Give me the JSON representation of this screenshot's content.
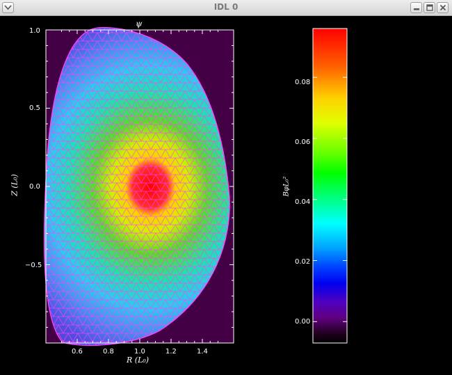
{
  "window": {
    "title": "IDL 0",
    "menu_icon": "chevron-down-icon",
    "controls": [
      "minimize-icon",
      "maximize-icon",
      "close-icon"
    ]
  },
  "chart_data": {
    "type": "heatmap",
    "title": "ψ",
    "xlabel": "R (L₀)",
    "ylabel": "Z (L₀)",
    "xlim": [
      0.4,
      1.6
    ],
    "ylim": [
      -1.0,
      1.0
    ],
    "x_ticks": [
      "0.6",
      "0.8",
      "1.0",
      "1.2",
      "1.4"
    ],
    "y_ticks": [
      "1.0",
      "0.5",
      "0.0",
      "−0.5"
    ],
    "colorbar": {
      "label": "BφL₀²",
      "range": [
        -0.007,
        0.096
      ],
      "ticks": [
        "0.08",
        "0.06",
        "0.04",
        "0.02",
        "0.00"
      ],
      "colormap": "rainbow"
    },
    "mesh": "triangular finite-element mesh (magenta)",
    "peak": {
      "R": 1.05,
      "Z": 0.0
    },
    "colors": {
      "background": "#000000",
      "plot_fill": "#440044",
      "mesh": "#ff40ff",
      "axes": "#ffffff"
    }
  }
}
